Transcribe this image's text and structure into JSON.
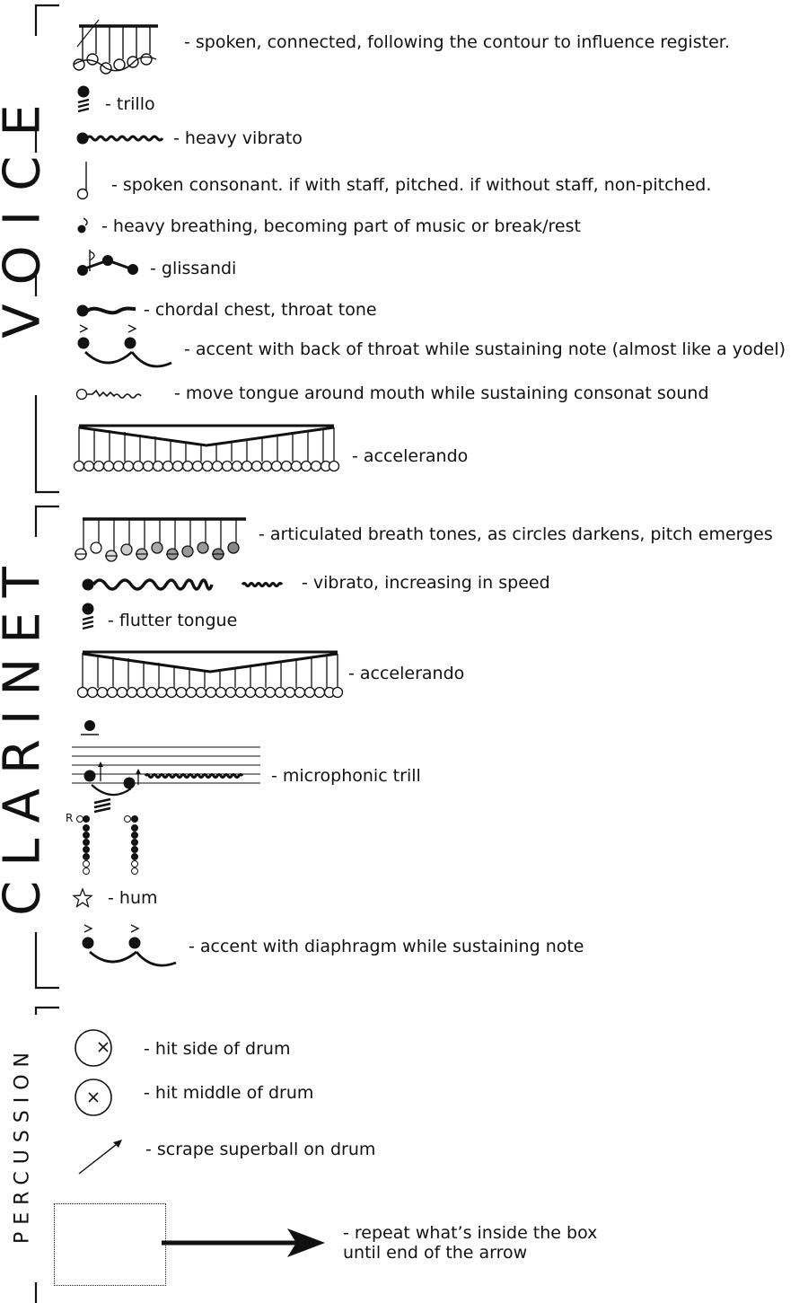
{
  "sections": {
    "voice": "VOICE",
    "clarinet": "CLARINET",
    "percussion": "PERCUSSION"
  },
  "voice_items": [
    {
      "symbol": "spoken-connected-icon",
      "text": "- spoken, connected, following the contour to influence register."
    },
    {
      "symbol": "trillo-icon",
      "text": "- trillo"
    },
    {
      "symbol": "heavy-vibrato-icon",
      "text": "- heavy vibrato"
    },
    {
      "symbol": "spoken-consonant-icon",
      "text": "- spoken consonant. if with staff, pitched. if without staff, non-pitched."
    },
    {
      "symbol": "heavy-breathing-icon",
      "text": "- heavy breathing, becoming part of music or break/rest"
    },
    {
      "symbol": "glissandi-icon",
      "text": "- glissandi"
    },
    {
      "symbol": "chordal-chest-icon",
      "text": "- chordal chest, throat tone"
    },
    {
      "symbol": "throat-accent-icon",
      "text": "- accent with back of throat while sustaining note (almost like a yodel)"
    },
    {
      "symbol": "tongue-around-icon",
      "text": "- move tongue around mouth while sustaining consonat sound"
    },
    {
      "symbol": "accelerando-icon",
      "text": "- accelerando"
    }
  ],
  "clarinet_items": [
    {
      "symbol": "breath-tones-icon",
      "text": "- articulated breath tones, as circles darkens, pitch emerges"
    },
    {
      "symbol": "vibrato-increasing-icon",
      "text": "- vibrato, increasing in speed"
    },
    {
      "symbol": "flutter-tongue-icon",
      "text": "- flutter tongue"
    },
    {
      "symbol": "accelerando-icon",
      "text": "- accelerando"
    },
    {
      "symbol": "microphonic-trill-icon",
      "text": "- microphonic trill"
    },
    {
      "symbol": "hum-star-icon",
      "text": "- hum"
    },
    {
      "symbol": "diaphragm-accent-icon",
      "text": "- accent with diaphragm while sustaining note"
    }
  ],
  "fingering_label": "R",
  "percussion_items": [
    {
      "symbol": "drum-side-icon",
      "text": "- hit side of drum"
    },
    {
      "symbol": "drum-middle-icon",
      "text": "- hit middle of drum"
    },
    {
      "symbol": "scrape-arrow-icon",
      "text": "- scrape superball on drum"
    },
    {
      "symbol": "repeat-box-icon",
      "text": "- repeat what’s inside the box",
      "text2": "until end of the arrow"
    }
  ]
}
